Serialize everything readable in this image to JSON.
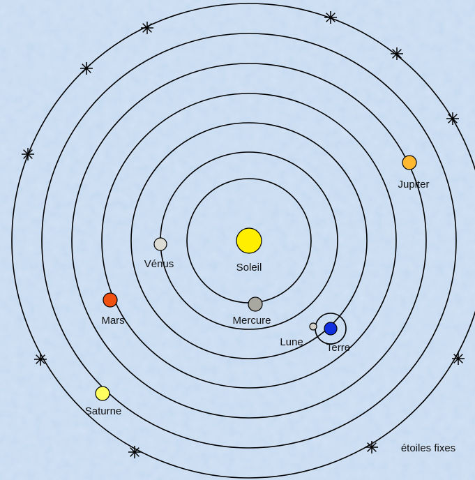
{
  "nodes": [
    {
      "label": "Soleil"
    },
    {
      "label": "Mercure"
    },
    {
      "label": "Vénus"
    },
    {
      "label": "Lune"
    },
    {
      "label": "Terre"
    },
    {
      "label": "Mars"
    },
    {
      "label": "Jupiter"
    },
    {
      "label": "Saturne"
    }
  ],
  "legend": {
    "label": "étoiles fixes"
  }
}
